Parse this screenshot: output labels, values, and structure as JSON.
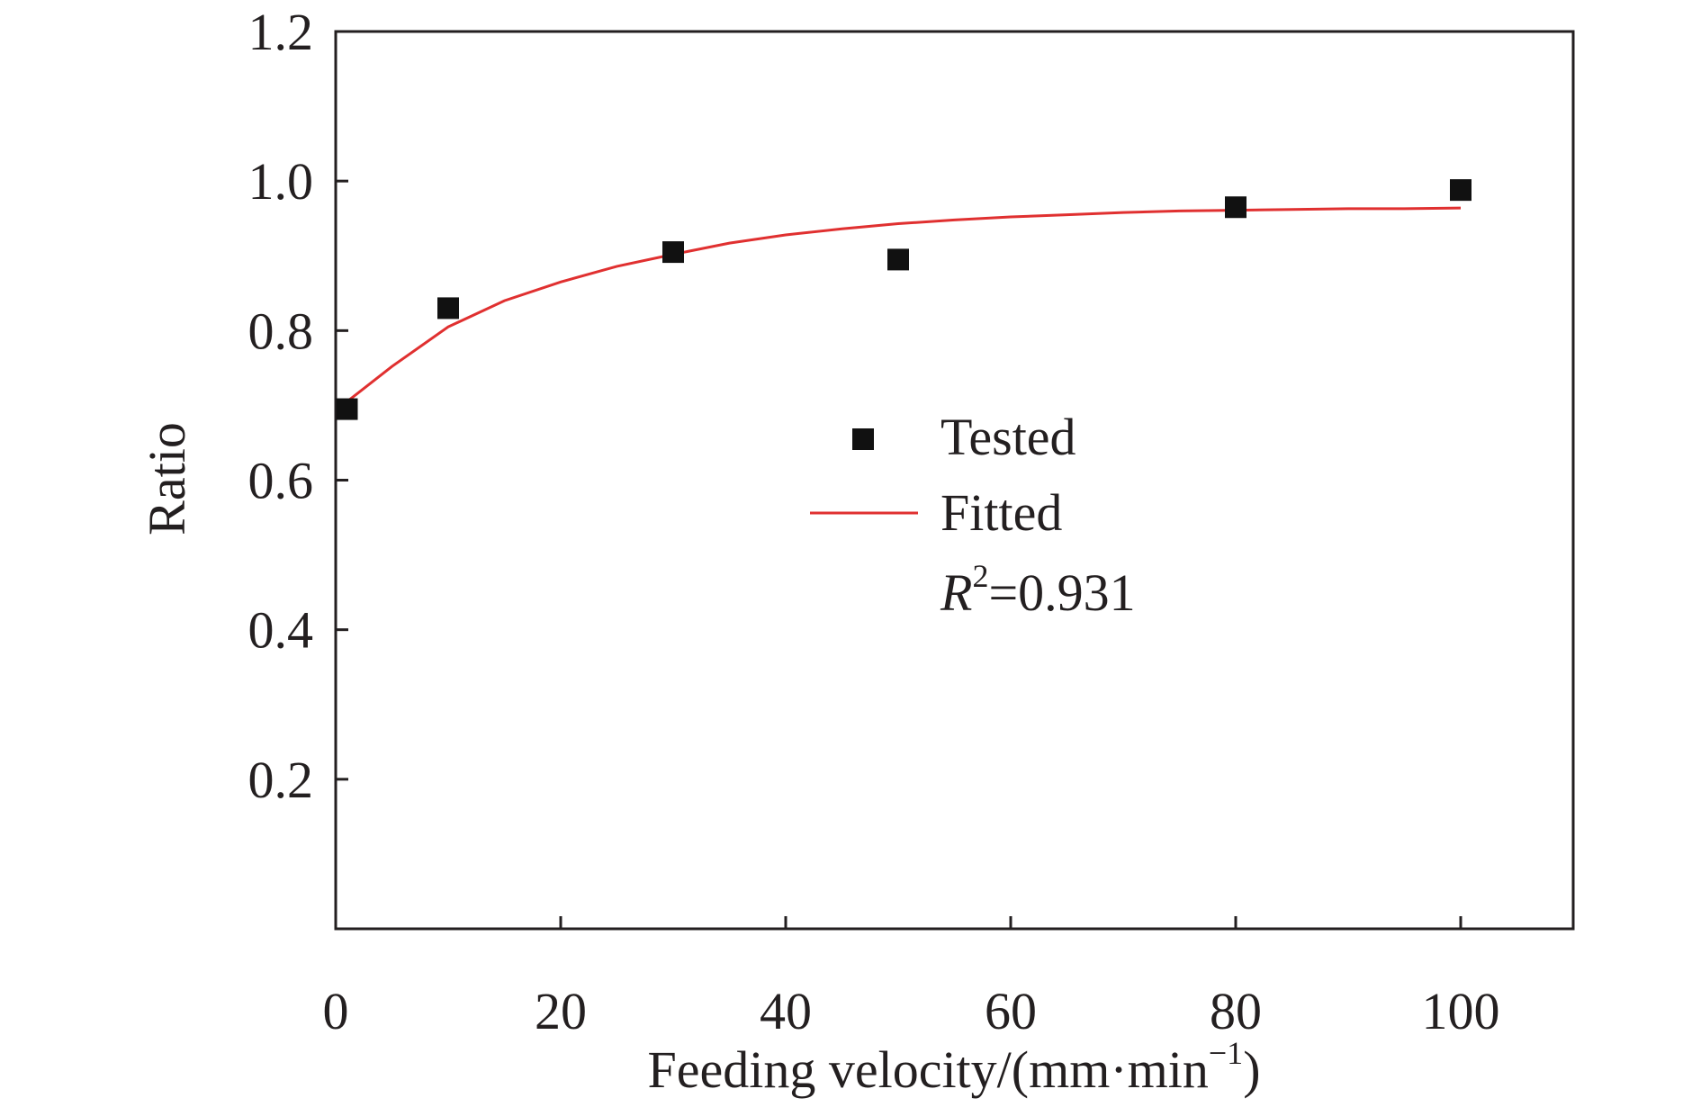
{
  "chart_data": {
    "type": "scatter",
    "title": "",
    "xlabel": "Feeding velocity/(mm·min",
    "xlabel_sup": "−1",
    "xlabel_tail": ")",
    "ylabel": "Ratio",
    "xlim": [
      0,
      110
    ],
    "ylim": [
      0,
      1.2
    ],
    "x_ticks": [
      0,
      20,
      40,
      60,
      80,
      100
    ],
    "x_tick_labels": [
      "0",
      "20",
      "40",
      "60",
      "80",
      "100"
    ],
    "y_ticks": [
      0.2,
      0.4,
      0.6,
      0.8,
      1.0,
      1.2
    ],
    "y_tick_labels": [
      "0.2",
      "0.4",
      "0.6",
      "0.8",
      "1.0",
      "1.2"
    ],
    "grid": false,
    "legend_position": "center-right",
    "series": [
      {
        "name": "Tested",
        "kind": "scatter",
        "marker": "square",
        "color": "#111111",
        "points": [
          {
            "x": 1,
            "y": 0.695
          },
          {
            "x": 10,
            "y": 0.83
          },
          {
            "x": 30,
            "y": 0.905
          },
          {
            "x": 50,
            "y": 0.895
          },
          {
            "x": 80,
            "y": 0.965
          },
          {
            "x": 100,
            "y": 0.988
          }
        ]
      },
      {
        "name": "Fitted",
        "kind": "line",
        "color": "#e03030",
        "points": [
          {
            "x": 1,
            "y": 0.705
          },
          {
            "x": 5,
            "y": 0.752
          },
          {
            "x": 10,
            "y": 0.805
          },
          {
            "x": 15,
            "y": 0.84
          },
          {
            "x": 20,
            "y": 0.865
          },
          {
            "x": 25,
            "y": 0.886
          },
          {
            "x": 30,
            "y": 0.902
          },
          {
            "x": 35,
            "y": 0.917
          },
          {
            "x": 40,
            "y": 0.928
          },
          {
            "x": 45,
            "y": 0.936
          },
          {
            "x": 50,
            "y": 0.943
          },
          {
            "x": 55,
            "y": 0.948
          },
          {
            "x": 60,
            "y": 0.952
          },
          {
            "x": 65,
            "y": 0.955
          },
          {
            "x": 70,
            "y": 0.958
          },
          {
            "x": 75,
            "y": 0.96
          },
          {
            "x": 80,
            "y": 0.961
          },
          {
            "x": 85,
            "y": 0.962
          },
          {
            "x": 90,
            "y": 0.963
          },
          {
            "x": 95,
            "y": 0.963
          },
          {
            "x": 100,
            "y": 0.964
          }
        ]
      }
    ],
    "annotation": {
      "symbol": "R",
      "sup": "2",
      "text": "=0.931"
    }
  }
}
